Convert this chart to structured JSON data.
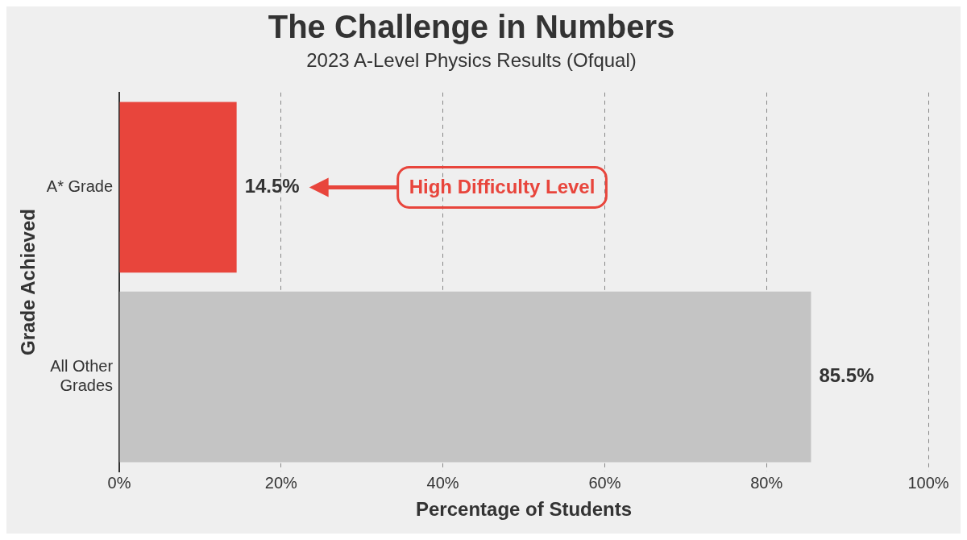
{
  "chart_data": {
    "type": "bar",
    "orientation": "horizontal",
    "title": "The Challenge in Numbers",
    "subtitle": "2023 A-Level Physics Results (Ofqual)",
    "xlabel": "Percentage of Students",
    "ylabel": "Grade Achieved",
    "categories": [
      "A* Grade",
      "All Other Grades"
    ],
    "values": [
      14.5,
      85.5
    ],
    "colors": [
      "#e8453c",
      "#c4c4c4"
    ],
    "value_labels": [
      "14.5%",
      "85.5%"
    ],
    "xlim": [
      0,
      100
    ],
    "xticks": [
      {
        "value": 0,
        "label": "0%"
      },
      {
        "value": 20,
        "label": "20%"
      },
      {
        "value": 40,
        "label": "40%"
      },
      {
        "value": 60,
        "label": "60%"
      },
      {
        "value": 80,
        "label": "80%"
      },
      {
        "value": 100,
        "label": "100%"
      }
    ],
    "grid": "x",
    "legend": false,
    "annotations": [
      "High Difficulty Level"
    ]
  }
}
